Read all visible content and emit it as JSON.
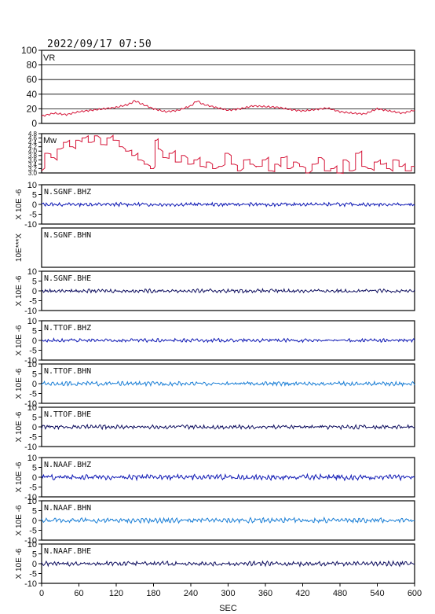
{
  "header": {
    "datetime": "2022/09/17 07:50"
  },
  "xaxis": {
    "label": "SEC",
    "ticks": [
      0,
      60,
      120,
      180,
      240,
      300,
      360,
      420,
      480,
      540,
      600
    ],
    "range": [
      0,
      600
    ]
  },
  "colors": {
    "axis": "#000000",
    "vr_line": "#d6173a",
    "mw_line": "#d6173a",
    "dark_blue": "#0e18b4",
    "light_blue": "#1b7fd6",
    "navy": "#101060"
  },
  "chart_data": [
    {
      "type": "line",
      "name": "VR",
      "ylim": [
        0,
        100
      ],
      "yticks": [
        "100",
        "80",
        "60",
        "40",
        "20",
        "0"
      ],
      "grid": true,
      "x": [
        0,
        20,
        40,
        60,
        80,
        100,
        120,
        140,
        150,
        160,
        180,
        200,
        220,
        240,
        250,
        260,
        280,
        300,
        320,
        340,
        360,
        380,
        400,
        420,
        440,
        460,
        480,
        500,
        520,
        540,
        560,
        580,
        600
      ],
      "series": [
        {
          "values": [
            10,
            14,
            12,
            16,
            18,
            20,
            22,
            26,
            31,
            27,
            20,
            16,
            18,
            24,
            31,
            26,
            22,
            18,
            20,
            24,
            23,
            22,
            19,
            17,
            19,
            21,
            16,
            14,
            13,
            20,
            17,
            14,
            18
          ]
        }
      ]
    },
    {
      "type": "line",
      "name": "Mw",
      "ylim": [
        3.0,
        4.8
      ],
      "yticks": [
        "4.8",
        "4.6",
        "4.4",
        "4.2",
        "4.0",
        "3.8",
        "3.6",
        "3.4",
        "3.2",
        "3.0"
      ],
      "x": [
        0,
        10,
        20,
        30,
        40,
        50,
        60,
        70,
        80,
        90,
        100,
        110,
        120,
        130,
        140,
        150,
        160,
        170,
        180,
        185,
        190,
        200,
        210,
        220,
        230,
        240,
        250,
        260,
        270,
        280,
        290,
        300,
        310,
        320,
        330,
        340,
        350,
        360,
        370,
        380,
        390,
        400,
        410,
        420,
        430,
        440,
        450,
        460,
        470,
        480,
        490,
        500,
        510,
        520,
        530,
        540,
        550,
        560,
        570,
        580,
        590,
        600
      ],
      "series": [
        {
          "values": [
            3.1,
            3.9,
            3.7,
            4.1,
            4.4,
            4.2,
            4.5,
            4.6,
            4.4,
            4.7,
            4.3,
            4.6,
            4.5,
            4.2,
            4.0,
            3.8,
            3.6,
            3.4,
            3.2,
            4.5,
            4.1,
            3.7,
            3.9,
            3.5,
            3.8,
            3.4,
            3.6,
            3.3,
            3.5,
            3.2,
            3.3,
            3.9,
            3.4,
            3.1,
            3.6,
            3.4,
            3.3,
            3.6,
            3.1,
            3.4,
            3.7,
            3.2,
            3.5,
            3.3,
            3.0,
            3.4,
            3.7,
            3.1,
            3.2,
            3.0,
            3.6,
            3.1,
            3.9,
            3.3,
            3.2,
            3.5,
            3.4,
            3.2,
            3.6,
            3.3,
            3.1,
            3.3
          ]
        }
      ]
    }
  ],
  "traces": [
    {
      "label": "N.SGNF.BHZ",
      "unit": "X 10E -6",
      "yticks": [
        "10",
        "5",
        "0",
        "-5",
        "-10"
      ],
      "color": "dark_blue",
      "amp": 0.8,
      "empty": false
    },
    {
      "label": "N.SGNF.BHN",
      "unit": "10E***X",
      "yticks": [],
      "color": "dark_blue",
      "amp": 0,
      "empty": true
    },
    {
      "label": "N.SGNF.BHE",
      "unit": "X 10E -6",
      "yticks": [
        "10",
        "5",
        "0",
        "-5",
        "-10"
      ],
      "color": "navy",
      "amp": 0.8,
      "empty": false
    },
    {
      "label": "N.TTOF.BHZ",
      "unit": "X 10E -6",
      "yticks": [
        "10",
        "5",
        "0",
        "-5",
        "-10"
      ],
      "color": "dark_blue",
      "amp": 0.8,
      "empty": false
    },
    {
      "label": "N.TTOF.BHN",
      "unit": "X 10E -6",
      "yticks": [
        "10",
        "5",
        "0",
        "-5",
        "-10"
      ],
      "color": "light_blue",
      "amp": 0.9,
      "empty": false
    },
    {
      "label": "N.TTOF.BHE",
      "unit": "X 10E -6",
      "yticks": [
        "10",
        "5",
        "0",
        "-5",
        "-10"
      ],
      "color": "navy",
      "amp": 0.9,
      "empty": false
    },
    {
      "label": "N.NAAF.BHZ",
      "unit": "X 10E -6",
      "yticks": [
        "10",
        "5",
        "0",
        "-5",
        "-10"
      ],
      "color": "dark_blue",
      "amp": 1.2,
      "empty": false
    },
    {
      "label": "N.NAAF.BHN",
      "unit": "X 10E -6",
      "yticks": [
        "10",
        "5",
        "0",
        "-5",
        "-10"
      ],
      "color": "light_blue",
      "amp": 1.1,
      "empty": false
    },
    {
      "label": "N.NAAF.BHE",
      "unit": "X 10E -6",
      "yticks": [
        "10",
        "5",
        "0",
        "-5",
        "-10"
      ],
      "color": "navy",
      "amp": 1.0,
      "empty": false
    }
  ]
}
